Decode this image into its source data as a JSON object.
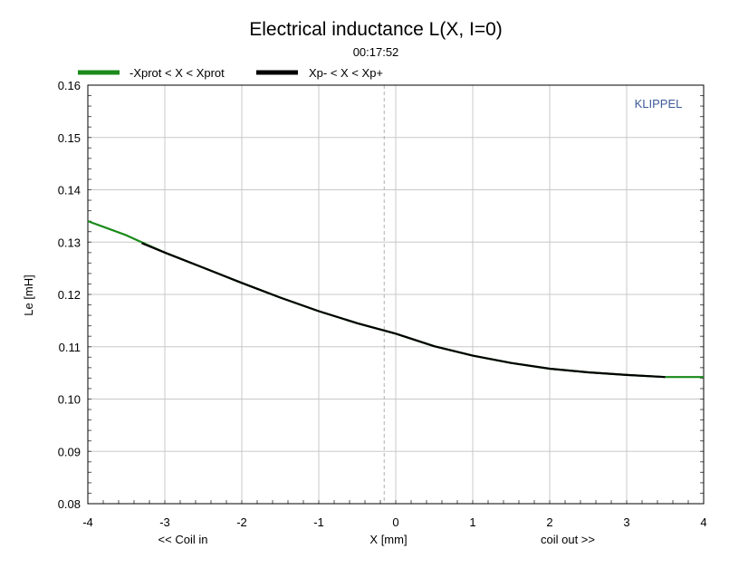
{
  "chart_data": {
    "type": "line",
    "title": "Electrical inductance L(X, I=0)",
    "subtitle": "00:17:52",
    "watermark": "KLIPPEL",
    "xlabel": "X [mm]",
    "xlabel_left": "<< Coil in",
    "xlabel_right": "coil out >>",
    "ylabel": "Le [mH]",
    "xlim": [
      -4,
      4
    ],
    "ylim": [
      0.08,
      0.16
    ],
    "xticks": [
      -4,
      -3,
      -2,
      -1,
      0,
      1,
      2,
      3,
      4
    ],
    "yticks": [
      "0.08",
      "0.09",
      "0.10",
      "0.11",
      "0.12",
      "0.13",
      "0.14",
      "0.15",
      "0.16"
    ],
    "grid": true,
    "reference_line_x": -0.15,
    "legend_position": "top-left",
    "series": [
      {
        "name": "-Xprot < X < Xprot",
        "color": "#1a8a1a",
        "points": [
          [
            -4.0,
            0.134
          ],
          [
            -3.5,
            0.1313
          ],
          [
            -3.2,
            0.1293
          ],
          [
            -3.0,
            0.128
          ],
          [
            -2.5,
            0.1251
          ],
          [
            -2.0,
            0.1222
          ],
          [
            -1.5,
            0.1194
          ],
          [
            -1.0,
            0.1168
          ],
          [
            -0.5,
            0.1145
          ],
          [
            0.0,
            0.1125
          ],
          [
            0.5,
            0.1101
          ],
          [
            1.0,
            0.1083
          ],
          [
            1.5,
            0.1069
          ],
          [
            2.0,
            0.1058
          ],
          [
            2.5,
            0.1051
          ],
          [
            3.0,
            0.1046
          ],
          [
            3.5,
            0.1042
          ],
          [
            4.0,
            0.1042
          ]
        ]
      },
      {
        "name": "Xp- < X < Xp+",
        "color": "#000000",
        "points": [
          [
            -3.3,
            0.1298
          ],
          [
            -3.0,
            0.128
          ],
          [
            -2.5,
            0.1251
          ],
          [
            -2.0,
            0.1222
          ],
          [
            -1.5,
            0.1194
          ],
          [
            -1.0,
            0.1168
          ],
          [
            -0.5,
            0.1145
          ],
          [
            0.0,
            0.1125
          ],
          [
            0.5,
            0.1101
          ],
          [
            1.0,
            0.1083
          ],
          [
            1.5,
            0.1069
          ],
          [
            2.0,
            0.1058
          ],
          [
            2.5,
            0.1051
          ],
          [
            3.0,
            0.1046
          ],
          [
            3.5,
            0.1042
          ]
        ]
      }
    ]
  }
}
